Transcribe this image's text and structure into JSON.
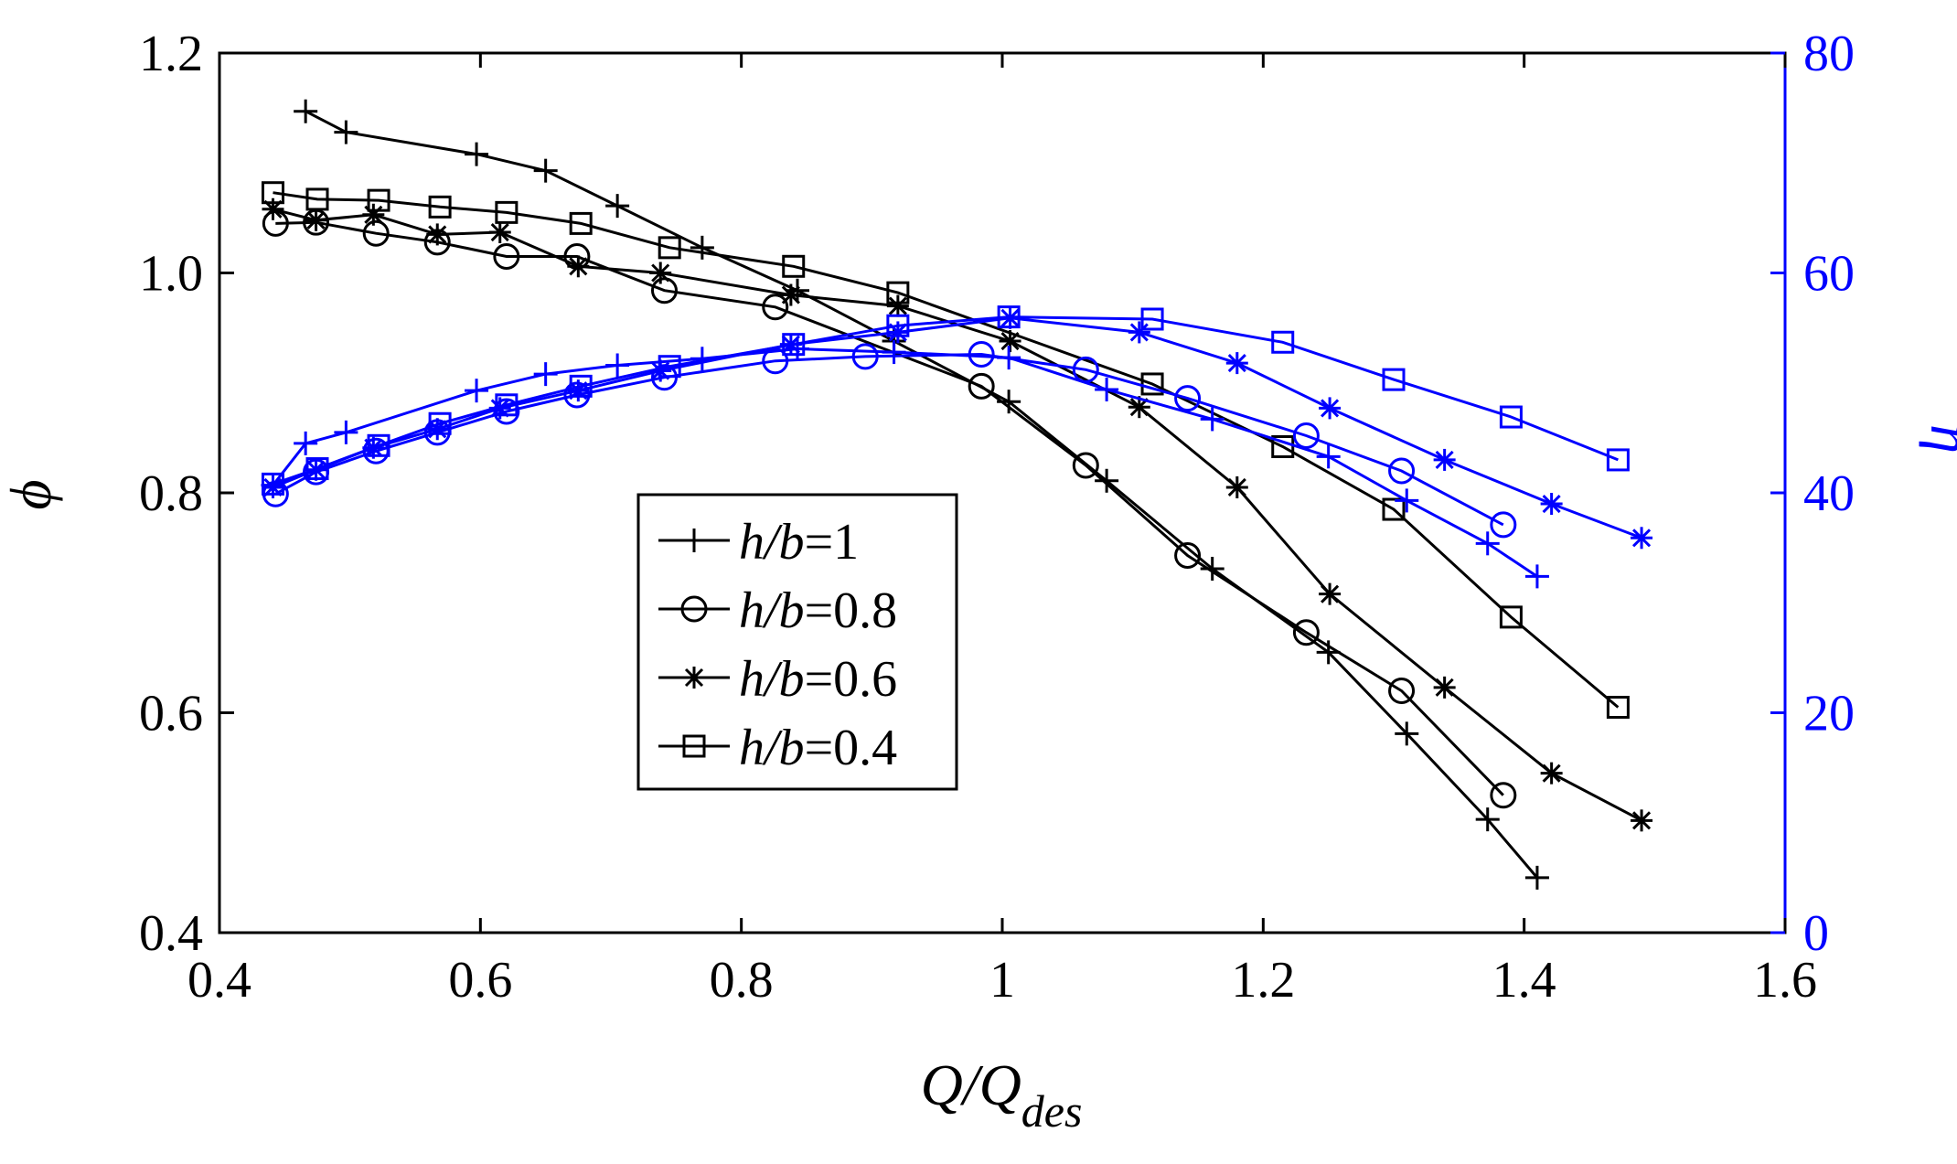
{
  "chart_data": {
    "type": "line",
    "xlabel": {
      "main": "Q/Q",
      "sub": "des"
    },
    "ylabel_left": "ϕ",
    "ylabel_right": "η",
    "xlim": [
      0.4,
      1.6
    ],
    "ylim_left": [
      0.4,
      1.2
    ],
    "ylim_right": [
      0,
      80
    ],
    "x_ticks": [
      "0.4",
      "0.6",
      "0.8",
      "1",
      "1.2",
      "1.4",
      "1.6"
    ],
    "x_tick_values": [
      0.4,
      0.6,
      0.8,
      1.0,
      1.2,
      1.4,
      1.6
    ],
    "y_left_ticks": [
      "0.4",
      "0.6",
      "0.8",
      "1.0",
      "1.2"
    ],
    "y_left_tick_values": [
      0.4,
      0.6,
      0.8,
      1.0,
      1.2
    ],
    "y_right_ticks": [
      "0",
      "20",
      "40",
      "60",
      "80"
    ],
    "y_right_tick_values": [
      0,
      20,
      40,
      60,
      80
    ],
    "colors": {
      "phi": "#000000",
      "eta": "#0000ff",
      "axis": "#000000",
      "right_axis": "#0000ff"
    },
    "legend": {
      "position": "center-left",
      "entries": [
        {
          "italic": "h/b",
          "rest": "=1",
          "marker": "plus"
        },
        {
          "italic": "h/b",
          "rest": "=0.8",
          "marker": "circle"
        },
        {
          "italic": "h/b",
          "rest": "=0.6",
          "marker": "asterisk"
        },
        {
          "italic": "h/b",
          "rest": "=0.4",
          "marker": "square"
        }
      ]
    },
    "series_phi": [
      {
        "name": "h/b=1",
        "marker": "plus",
        "x": [
          0.466,
          0.497,
          0.597,
          0.65,
          0.705,
          0.77,
          0.843,
          0.917,
          1.005,
          1.08,
          1.161,
          1.25,
          1.31,
          1.372,
          1.41
        ],
        "y": [
          1.147,
          1.128,
          1.108,
          1.093,
          1.061,
          1.023,
          0.984,
          0.938,
          0.883,
          0.811,
          0.731,
          0.655,
          0.581,
          0.503,
          0.45
        ]
      },
      {
        "name": "h/b=0.8",
        "marker": "circle",
        "x": [
          0.443,
          0.474,
          0.52,
          0.567,
          0.62,
          0.674,
          0.741,
          0.826,
          0.984,
          1.064,
          1.142,
          1.233,
          1.306,
          1.384
        ],
        "y": [
          1.045,
          1.046,
          1.036,
          1.028,
          1.015,
          1.015,
          0.984,
          0.969,
          0.897,
          0.825,
          0.743,
          0.673,
          0.62,
          0.525
        ]
      },
      {
        "name": "h/b=0.6",
        "marker": "asterisk",
        "x": [
          0.441,
          0.474,
          0.518,
          0.567,
          0.615,
          0.675,
          0.738,
          0.838,
          0.92,
          1.006,
          1.105,
          1.18,
          1.251,
          1.339,
          1.421,
          1.49
        ],
        "y": [
          1.058,
          1.048,
          1.053,
          1.035,
          1.037,
          1.006,
          1.0,
          0.98,
          0.97,
          0.938,
          0.878,
          0.805,
          0.708,
          0.623,
          0.545,
          0.502
        ]
      },
      {
        "name": "h/b=0.4",
        "marker": "square",
        "x": [
          0.441,
          0.475,
          0.522,
          0.569,
          0.62,
          0.677,
          0.745,
          0.84,
          0.92,
          1.115,
          1.215,
          1.3,
          1.39,
          1.472
        ],
        "y": [
          1.073,
          1.067,
          1.066,
          1.06,
          1.055,
          1.045,
          1.023,
          1.006,
          0.982,
          0.899,
          0.842,
          0.785,
          0.687,
          0.605
        ]
      }
    ],
    "series_eta": [
      {
        "name": "h/b=1",
        "marker": "plus",
        "x": [
          0.441,
          0.466,
          0.497,
          0.597,
          0.65,
          0.705,
          0.77,
          0.843,
          0.917,
          1.005,
          1.08,
          1.161,
          1.25,
          1.31,
          1.372,
          1.41
        ],
        "y": [
          40.7,
          44.5,
          45.5,
          49.3,
          50.8,
          51.6,
          52.2,
          53.1,
          52.8,
          52.3,
          49.4,
          46.7,
          43.3,
          39.3,
          35.4,
          32.4
        ]
      },
      {
        "name": "h/b=0.8",
        "marker": "circle",
        "x": [
          0.443,
          0.474,
          0.52,
          0.567,
          0.62,
          0.674,
          0.741,
          0.826,
          0.895,
          0.984,
          1.064,
          1.142,
          1.233,
          1.306,
          1.384
        ],
        "y": [
          39.9,
          41.9,
          43.8,
          45.5,
          47.4,
          48.9,
          50.5,
          52.0,
          52.4,
          52.6,
          51.2,
          48.6,
          45.2,
          42.0,
          37.1
        ]
      },
      {
        "name": "h/b=0.6",
        "marker": "asterisk",
        "x": [
          0.441,
          0.474,
          0.518,
          0.567,
          0.615,
          0.675,
          0.738,
          0.838,
          0.92,
          1.006,
          1.105,
          1.18,
          1.251,
          1.339,
          1.421,
          1.49
        ],
        "y": [
          40.5,
          42.1,
          44.1,
          45.8,
          47.7,
          49.3,
          51.1,
          53.5,
          54.6,
          55.9,
          54.6,
          51.8,
          47.7,
          43.0,
          39.0,
          35.9
        ]
      },
      {
        "name": "h/b=0.4",
        "marker": "square",
        "x": [
          0.441,
          0.475,
          0.522,
          0.569,
          0.62,
          0.677,
          0.745,
          0.84,
          0.92,
          1.005,
          1.115,
          1.215,
          1.3,
          1.39,
          1.472
        ],
        "y": [
          40.8,
          42.2,
          44.3,
          46.3,
          48.0,
          49.7,
          51.5,
          53.5,
          55.2,
          56.0,
          55.8,
          53.7,
          50.3,
          46.9,
          43.0
        ]
      }
    ]
  }
}
